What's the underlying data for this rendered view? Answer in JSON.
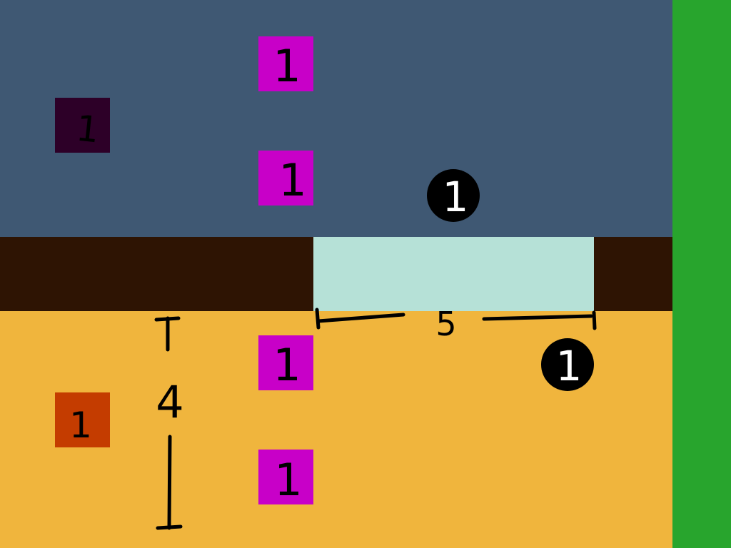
{
  "colors": {
    "sky": "#3f5873",
    "ground": "#f0b53d",
    "dark_band": "#2e1403",
    "water": "#b6e1d7",
    "side_strip": "#28a52d",
    "magenta_tile": "#c800c8",
    "purple_tile": "#2d0028",
    "orange_tile": "#c43c00",
    "coin": "#000000",
    "ink": "#000000"
  },
  "tiles": {
    "magenta_label": "1",
    "purple_label": "1",
    "orange_label": "1"
  },
  "coins": {
    "label": "1"
  },
  "dimensions": {
    "horizontal_label": "5",
    "vertical_label": "4"
  }
}
